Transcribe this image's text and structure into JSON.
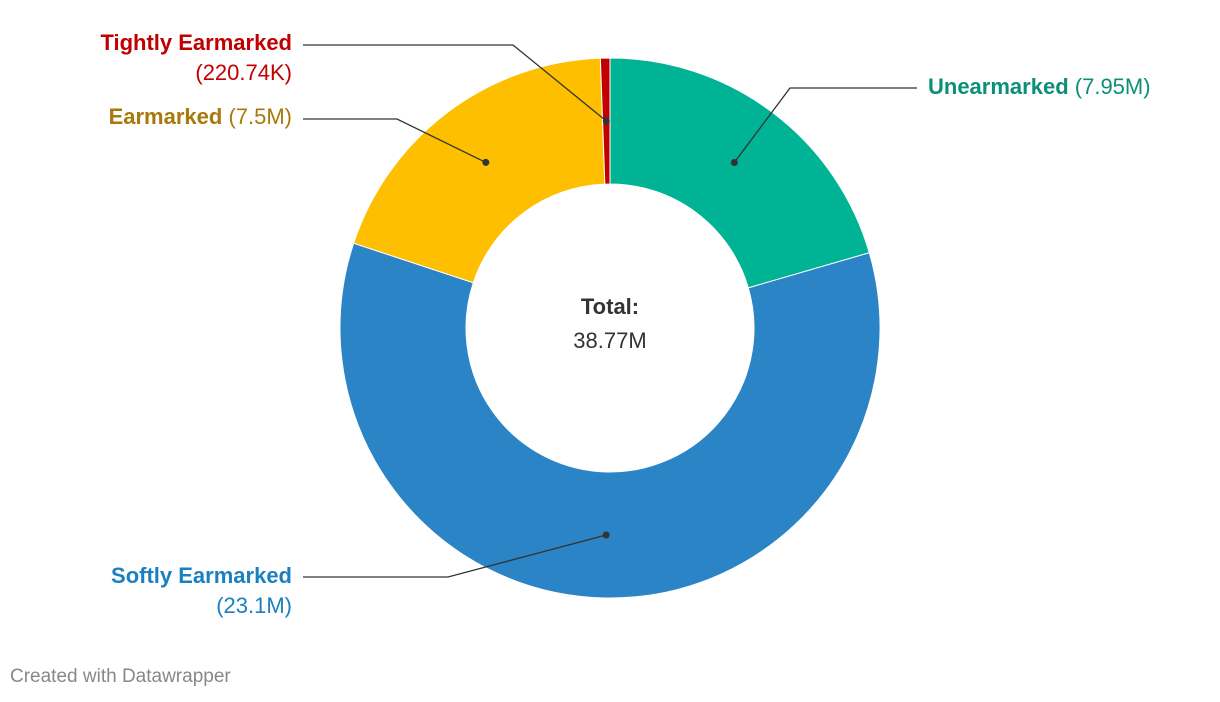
{
  "chart_data": {
    "type": "pie",
    "variant": "donut",
    "slices": [
      {
        "name": "Unearmarked",
        "value": 7.95,
        "value_label": "(7.95M)",
        "color": "#00b395"
      },
      {
        "name": "Softly Earmarked",
        "value": 23.1,
        "value_label": "(23.1M)",
        "color": "#2b84c6"
      },
      {
        "name": "Earmarked",
        "value": 7.5,
        "value_label": "(7.5M)",
        "color": "#fdbf00"
      },
      {
        "name": "Tightly Earmarked",
        "value": 0.22074,
        "value_label": "(220.74K)",
        "color": "#c10000"
      }
    ],
    "label_colors": {
      "Unearmarked": "#0c8f77",
      "Softly Earmarked": "#1c80c0",
      "Earmarked": "#a8780a",
      "Tightly Earmarked": "#c10000"
    },
    "center": {
      "title": "Total:",
      "value": "38.77M"
    }
  },
  "footer": {
    "credit": "Created with Datawrapper"
  }
}
